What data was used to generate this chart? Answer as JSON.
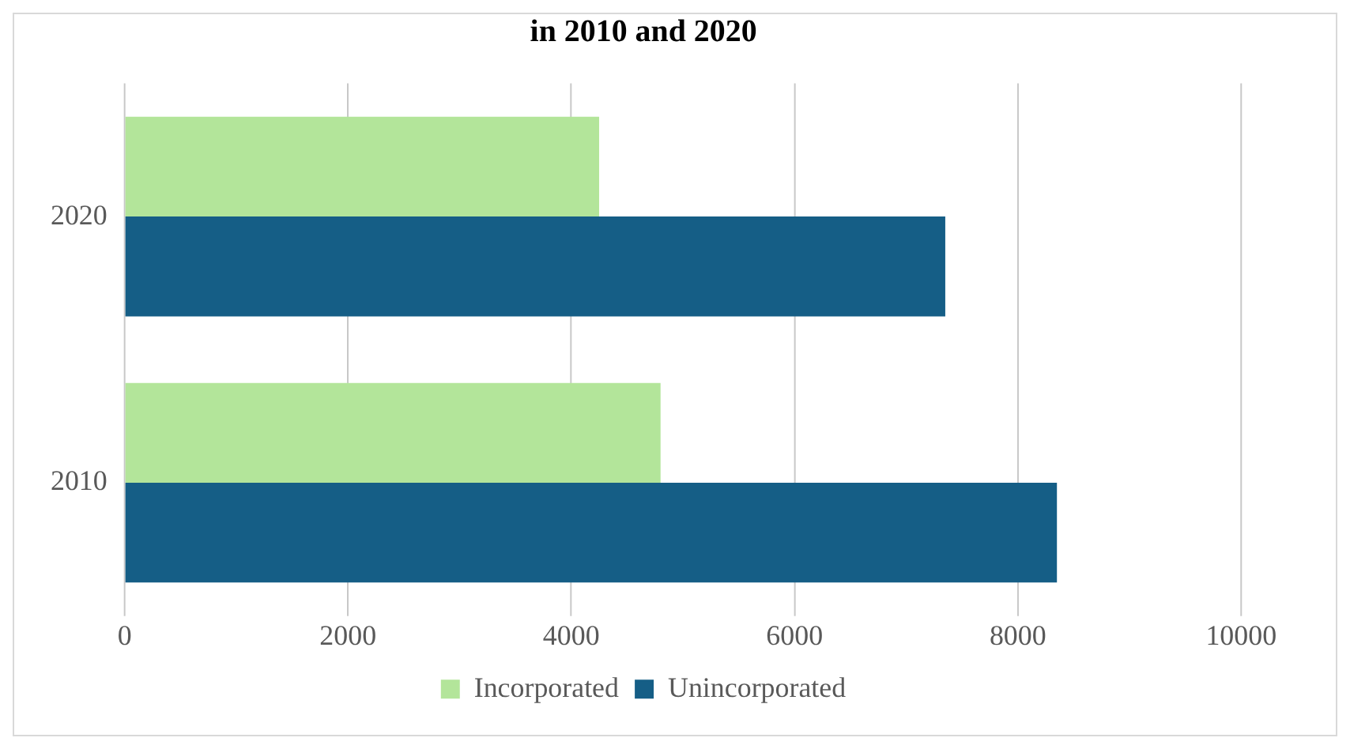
{
  "chart_data": {
    "type": "bar",
    "orientation": "horizontal",
    "title": "in 2010 and 2020",
    "categories": [
      "2020",
      "2010"
    ],
    "series": [
      {
        "name": "Incorporated",
        "color": "#b3e59a",
        "values": [
          4250,
          4800
        ]
      },
      {
        "name": "Unincorporated",
        "color": "#155e86",
        "values": [
          7350,
          8350
        ]
      }
    ],
    "xlim": [
      0,
      10000
    ],
    "xticks": [
      0,
      2000,
      4000,
      6000,
      8000,
      10000
    ],
    "grid": "x",
    "legend": "bottom"
  }
}
